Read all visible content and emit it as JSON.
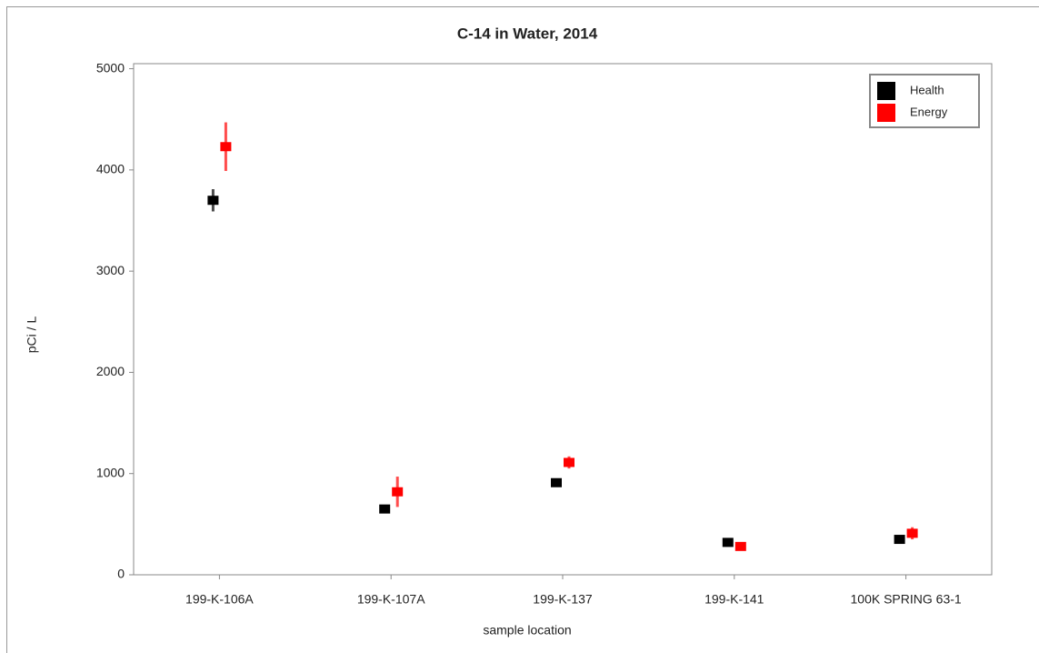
{
  "chart_data": {
    "type": "scatter",
    "title": "C-14 in Water, 2014",
    "x_label": "sample location",
    "y_label": "pCi / L",
    "categories": [
      "199-K-106A",
      "199-K-107A",
      "199-K-137",
      "199-K-141",
      "100K SPRING 63-1"
    ],
    "series": [
      {
        "name": "Health",
        "color": "#000000",
        "values": [
          3700,
          650,
          910,
          320,
          350
        ],
        "errors": [
          110,
          35,
          40,
          30,
          30
        ]
      },
      {
        "name": "Energy",
        "color": "#ff0000",
        "values": [
          4230,
          820,
          1110,
          280,
          410
        ],
        "errors": [
          240,
          150,
          60,
          30,
          60
        ]
      }
    ],
    "ylim": [
      0,
      5050
    ],
    "yticks": [
      0,
      1000,
      2000,
      3000,
      4000,
      5000
    ],
    "legend": "upper right"
  }
}
